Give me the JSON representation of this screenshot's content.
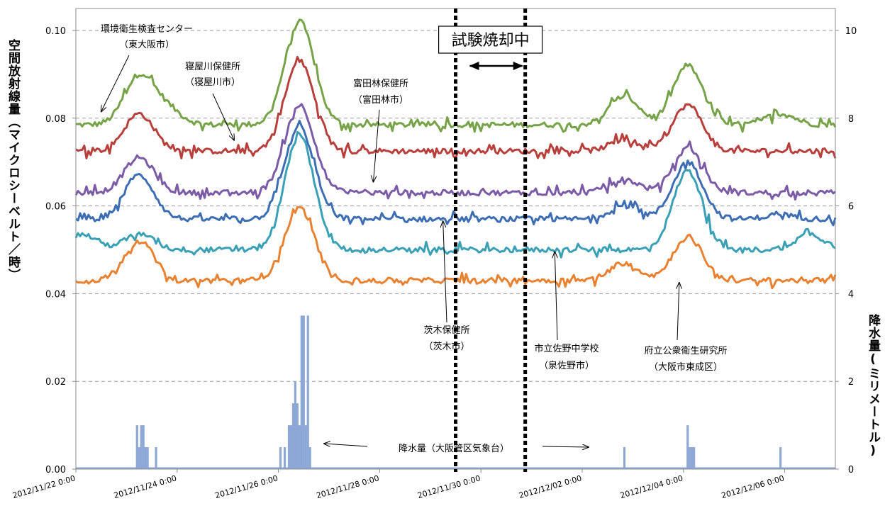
{
  "chart_data": {
    "type": "line",
    "title": "",
    "ylabel": "空間放射線量（マイクロシーベルト／時）",
    "y2label": "降水量(ミリメートル)",
    "ylim": [
      0,
      0.105
    ],
    "y2lim": [
      0,
      10.5
    ],
    "yticks": [
      "0.00",
      "0.02",
      "0.04",
      "0.06",
      "0.08",
      "0.10"
    ],
    "y2ticks": [
      "0",
      "2",
      "4",
      "6",
      "8",
      "10"
    ],
    "xlim": [
      "2012/11/22 0:00",
      "2012/12/07 0:00"
    ],
    "xticks": [
      "2012/11/22 0:00",
      "2012/11/24 0:00",
      "2012/11/26 0:00",
      "2012/11/28 0:00",
      "2012/11/30 0:00",
      "2012/12/02 0:00",
      "2012/12/04 0:00",
      "2012/12/06 0:00"
    ],
    "grid": "horizontal-dashed",
    "series": [
      {
        "name": "環境衛生検査センター（東大阪市）",
        "color": "#77A348",
        "baseline": 0.0785,
        "peaks": [
          [
            "2012/11/23 6:00",
            0.0895
          ],
          [
            "2012/11/23 19:00",
            0.082
          ],
          [
            "2012/11/26 10:00",
            0.102
          ],
          [
            "2012/12/02 20:00",
            0.085
          ],
          [
            "2012/12/04 2:00",
            0.092
          ],
          [
            "2012/12/05 22:00",
            0.081
          ]
        ]
      },
      {
        "name": "寝屋川保健所（寝屋川市）",
        "color": "#B8403C",
        "baseline": 0.0725,
        "peaks": [
          [
            "2012/11/23 6:00",
            0.081
          ],
          [
            "2012/11/26 10:00",
            0.093
          ],
          [
            "2012/12/02 20:00",
            0.075
          ],
          [
            "2012/12/04 2:00",
            0.083
          ]
        ]
      },
      {
        "name": "富田林保健所（富田林市）",
        "color": "#7B5BA6",
        "baseline": 0.063,
        "peaks": [
          [
            "2012/11/23 6:00",
            0.071
          ],
          [
            "2012/11/26 10:00",
            0.083
          ],
          [
            "2012/12/02 20:00",
            0.066
          ],
          [
            "2012/12/04 2:00",
            0.073
          ]
        ]
      },
      {
        "name": "茨木保健所（茨木市）",
        "color": "#3D6DB3",
        "baseline": 0.057,
        "peaks": [
          [
            "2012/11/23 6:00",
            0.067
          ],
          [
            "2012/11/26 10:00",
            0.078
          ],
          [
            "2012/12/02 20:00",
            0.06
          ],
          [
            "2012/12/04 2:00",
            0.07
          ],
          [
            "2012/12/05 22:00",
            0.058
          ]
        ]
      },
      {
        "name": "市立佐野中学校（泉佐野市）",
        "color": "#3AA0B6",
        "baseline": 0.05,
        "peaks": [
          [
            "2012/11/22 3:00",
            0.0535
          ],
          [
            "2012/11/23 6:00",
            0.0535
          ],
          [
            "2012/11/26 10:00",
            0.076
          ],
          [
            "2012/12/04 2:00",
            0.068
          ],
          [
            "2012/12/06 12:00",
            0.0535
          ]
        ]
      },
      {
        "name": "府立公衆衛生研究所（大阪市東成区）",
        "color": "#E88130",
        "baseline": 0.043,
        "peaks": [
          [
            "2012/11/23 6:00",
            0.052
          ],
          [
            "2012/11/26 10:00",
            0.0595
          ],
          [
            "2012/12/02 20:00",
            0.047
          ],
          [
            "2012/12/04 2:00",
            0.053
          ]
        ]
      },
      {
        "name": "降水量（大阪管区気象台）",
        "color": "#8EA8D6",
        "axis": "y2",
        "type": "bar",
        "x": [
          "2012/11/23 5:00",
          "2012/11/23 6:00",
          "2012/11/23 7:00",
          "2012/11/23 8:00",
          "2012/11/23 9:00",
          "2012/11/23 10:00",
          "2012/11/23 14:00",
          "2012/11/26 1:00",
          "2012/11/26 3:00",
          "2012/11/26 5:00",
          "2012/11/26 6:00",
          "2012/11/26 7:00",
          "2012/11/26 8:00",
          "2012/11/26 9:00",
          "2012/11/26 10:00",
          "2012/11/26 11:00",
          "2012/11/26 12:00",
          "2012/11/26 13:00",
          "2012/11/26 14:00",
          "2012/11/26 15:00",
          "2012/12/02 20:00",
          "2012/12/04 2:00",
          "2012/12/04 3:00",
          "2012/12/04 4:00",
          "2012/12/04 5:00",
          "2012/12/05 22:00"
        ],
        "values": [
          1,
          0.5,
          1,
          1,
          0.5,
          0.5,
          0.5,
          0.5,
          0.5,
          1,
          1,
          1.5,
          2,
          1.5,
          1,
          3.5,
          3.5,
          1,
          3.5,
          0.5,
          0.5,
          1,
          0.5,
          0.5,
          0.5,
          0.5
        ]
      }
    ],
    "annotations": [
      {
        "label": "試験焼却中",
        "type": "period",
        "start": "2012/11/29 12:00",
        "end": "2012/11/30 21:00"
      },
      {
        "label": "環境衛生検査センター",
        "sub": "（東大阪市）",
        "arrow_to": [
          "2012/11/22 12:00",
          0.0815
        ]
      },
      {
        "label": "寝屋川保健所",
        "sub": "（寝屋川市）",
        "arrow_to": [
          "2012/11/25 3:00",
          0.075
        ]
      },
      {
        "label": "富田林保健所",
        "sub": "（富田林市）",
        "arrow_to": [
          "2012/11/27 21:00",
          0.0655
        ]
      },
      {
        "label": "茨木保健所",
        "sub": "（茨木市）",
        "arrow_to": [
          "2012/11/29 6:00",
          0.0565
        ]
      },
      {
        "label": "市立佐野中学校",
        "sub": "（泉佐野市）",
        "arrow_to": [
          "2012/12/01 11:00",
          0.0495
        ]
      },
      {
        "label": "府立公衆衛生研究所",
        "sub": "（大阪市東成区）",
        "arrow_to": [
          "2012/12/03 22:00",
          0.0425
        ]
      },
      {
        "label": "降水量（大阪管区気象台）",
        "arrows": "both"
      }
    ]
  }
}
